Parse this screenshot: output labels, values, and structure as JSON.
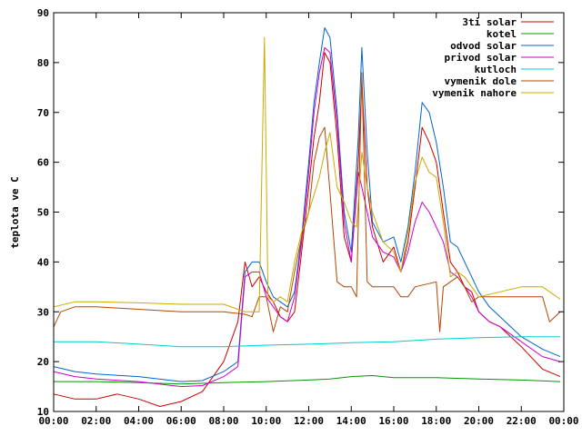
{
  "chart_data": {
    "type": "line",
    "xlabel": "",
    "ylabel": "teplota ve C",
    "ylim": [
      10,
      90
    ],
    "xlim": [
      "00:00",
      "24:00"
    ],
    "x_tick_labels": [
      "00:00",
      "02:00",
      "04:00",
      "06:00",
      "08:00",
      "10:00",
      "12:00",
      "14:00",
      "16:00",
      "18:00",
      "20:00",
      "22:00",
      "00:00"
    ],
    "y_tick_labels": [
      "10",
      "20",
      "30",
      "40",
      "50",
      "60",
      "70",
      "80",
      "90"
    ],
    "grid": false,
    "legend_position": "top-right",
    "series": [
      {
        "name": "3ti solar",
        "color": "#cc0000",
        "values": [
          [
            "00:00",
            13.5
          ],
          [
            "01:00",
            12.5
          ],
          [
            "02:00",
            12.5
          ],
          [
            "03:00",
            13.5
          ],
          [
            "04:00",
            12.5
          ],
          [
            "05:00",
            11
          ],
          [
            "06:00",
            12
          ],
          [
            "07:00",
            14
          ],
          [
            "08:00",
            20
          ],
          [
            "08:40",
            28
          ],
          [
            "09:00",
            40
          ],
          [
            "09:20",
            35
          ],
          [
            "09:40",
            37
          ],
          [
            "10:00",
            34
          ],
          [
            "10:20",
            32
          ],
          [
            "10:40",
            29
          ],
          [
            "11:00",
            28
          ],
          [
            "11:20",
            30
          ],
          [
            "11:40",
            42
          ],
          [
            "12:00",
            55
          ],
          [
            "12:15",
            65
          ],
          [
            "12:30",
            72
          ],
          [
            "12:45",
            82
          ],
          [
            "13:00",
            80
          ],
          [
            "13:20",
            65
          ],
          [
            "13:40",
            45
          ],
          [
            "14:00",
            40
          ],
          [
            "14:20",
            60
          ],
          [
            "14:30",
            76
          ],
          [
            "14:45",
            55
          ],
          [
            "15:00",
            47
          ],
          [
            "15:30",
            40
          ],
          [
            "16:00",
            43
          ],
          [
            "16:20",
            38
          ],
          [
            "16:40",
            44
          ],
          [
            "17:00",
            55
          ],
          [
            "17:20",
            67
          ],
          [
            "17:40",
            64
          ],
          [
            "18:00",
            60
          ],
          [
            "18:20",
            50
          ],
          [
            "18:40",
            40
          ],
          [
            "19:00",
            38
          ],
          [
            "19:20",
            35
          ],
          [
            "19:40",
            34
          ],
          [
            "20:00",
            30
          ],
          [
            "20:30",
            28
          ],
          [
            "21:00",
            27
          ],
          [
            "22:00",
            23
          ],
          [
            "23:00",
            18.5
          ],
          [
            "23:50",
            17
          ]
        ]
      },
      {
        "name": "kotel",
        "color": "#009900",
        "values": [
          [
            "00:00",
            16
          ],
          [
            "02:00",
            16
          ],
          [
            "04:00",
            15.8
          ],
          [
            "06:00",
            15.5
          ],
          [
            "08:00",
            15.8
          ],
          [
            "10:00",
            16
          ],
          [
            "12:00",
            16.3
          ],
          [
            "13:00",
            16.5
          ],
          [
            "14:00",
            17
          ],
          [
            "15:00",
            17.2
          ],
          [
            "16:00",
            16.8
          ],
          [
            "18:00",
            16.8
          ],
          [
            "20:00",
            16.5
          ],
          [
            "22:00",
            16.3
          ],
          [
            "23:50",
            16
          ]
        ]
      },
      {
        "name": "odvod solar",
        "color": "#0066cc",
        "values": [
          [
            "00:00",
            19
          ],
          [
            "01:00",
            18
          ],
          [
            "02:00",
            17.5
          ],
          [
            "04:00",
            17
          ],
          [
            "06:00",
            16
          ],
          [
            "07:00",
            16.2
          ],
          [
            "08:00",
            18
          ],
          [
            "08:40",
            20
          ],
          [
            "09:00",
            38
          ],
          [
            "09:20",
            40
          ],
          [
            "09:40",
            40
          ],
          [
            "10:00",
            36
          ],
          [
            "10:20",
            33
          ],
          [
            "10:40",
            32
          ],
          [
            "11:00",
            31
          ],
          [
            "11:20",
            34
          ],
          [
            "11:40",
            45
          ],
          [
            "12:00",
            60
          ],
          [
            "12:15",
            72
          ],
          [
            "12:30",
            80
          ],
          [
            "12:45",
            87
          ],
          [
            "13:00",
            85
          ],
          [
            "13:20",
            70
          ],
          [
            "13:40",
            50
          ],
          [
            "14:00",
            42
          ],
          [
            "14:20",
            65
          ],
          [
            "14:30",
            83
          ],
          [
            "14:45",
            62
          ],
          [
            "15:00",
            48
          ],
          [
            "15:30",
            44
          ],
          [
            "16:00",
            45
          ],
          [
            "16:20",
            40
          ],
          [
            "16:40",
            47
          ],
          [
            "17:00",
            58
          ],
          [
            "17:20",
            72
          ],
          [
            "17:40",
            70
          ],
          [
            "18:00",
            64
          ],
          [
            "18:20",
            55
          ],
          [
            "18:40",
            44
          ],
          [
            "19:00",
            43
          ],
          [
            "19:20",
            40
          ],
          [
            "19:40",
            37
          ],
          [
            "20:00",
            34
          ],
          [
            "20:30",
            31
          ],
          [
            "21:00",
            29
          ],
          [
            "22:00",
            25
          ],
          [
            "23:00",
            22.5
          ],
          [
            "23:50",
            21
          ]
        ]
      },
      {
        "name": "privod solar",
        "color": "#cc00cc",
        "values": [
          [
            "00:00",
            18
          ],
          [
            "01:00",
            17
          ],
          [
            "02:00",
            16.5
          ],
          [
            "04:00",
            16
          ],
          [
            "06:00",
            15
          ],
          [
            "07:00",
            15.2
          ],
          [
            "08:00",
            17
          ],
          [
            "08:40",
            19
          ],
          [
            "09:00",
            37
          ],
          [
            "09:20",
            38
          ],
          [
            "09:40",
            38
          ],
          [
            "10:00",
            33
          ],
          [
            "10:20",
            31
          ],
          [
            "10:40",
            29
          ],
          [
            "11:00",
            28
          ],
          [
            "11:20",
            33
          ],
          [
            "11:40",
            44
          ],
          [
            "12:00",
            58
          ],
          [
            "12:15",
            70
          ],
          [
            "12:30",
            78
          ],
          [
            "12:45",
            83
          ],
          [
            "13:00",
            82
          ],
          [
            "13:20",
            68
          ],
          [
            "13:40",
            48
          ],
          [
            "14:00",
            40
          ],
          [
            "14:20",
            58
          ],
          [
            "14:30",
            55
          ],
          [
            "14:45",
            50
          ],
          [
            "15:00",
            45
          ],
          [
            "15:30",
            42
          ],
          [
            "16:00",
            41
          ],
          [
            "16:20",
            38
          ],
          [
            "16:40",
            42
          ],
          [
            "17:00",
            48
          ],
          [
            "17:20",
            52
          ],
          [
            "17:40",
            50
          ],
          [
            "18:00",
            47
          ],
          [
            "18:20",
            44
          ],
          [
            "18:40",
            38
          ],
          [
            "19:00",
            37
          ],
          [
            "19:20",
            35
          ],
          [
            "19:40",
            33
          ],
          [
            "20:00",
            30
          ],
          [
            "20:30",
            28
          ],
          [
            "21:00",
            27
          ],
          [
            "22:00",
            24
          ],
          [
            "23:00",
            21
          ],
          [
            "23:50",
            20
          ]
        ]
      },
      {
        "name": "kutloch",
        "color": "#00cccc",
        "values": [
          [
            "00:00",
            24
          ],
          [
            "02:00",
            24
          ],
          [
            "04:00",
            23.5
          ],
          [
            "06:00",
            23
          ],
          [
            "08:00",
            23
          ],
          [
            "10:00",
            23.3
          ],
          [
            "12:00",
            23.5
          ],
          [
            "14:00",
            23.8
          ],
          [
            "16:00",
            24
          ],
          [
            "18:00",
            24.5
          ],
          [
            "20:00",
            24.8
          ],
          [
            "22:00",
            25
          ],
          [
            "23:50",
            25
          ]
        ]
      },
      {
        "name": "vymenik dole",
        "color": "#b34700",
        "values": [
          [
            "00:00",
            27
          ],
          [
            "00:20",
            30
          ],
          [
            "01:00",
            31
          ],
          [
            "02:00",
            31
          ],
          [
            "04:00",
            30.5
          ],
          [
            "06:00",
            30
          ],
          [
            "08:00",
            30
          ],
          [
            "09:00",
            29.5
          ],
          [
            "09:20",
            29
          ],
          [
            "09:40",
            33
          ],
          [
            "10:00",
            33
          ],
          [
            "10:20",
            26
          ],
          [
            "10:40",
            31
          ],
          [
            "11:00",
            30
          ],
          [
            "11:20",
            38
          ],
          [
            "11:40",
            45
          ],
          [
            "12:00",
            50
          ],
          [
            "12:15",
            60
          ],
          [
            "12:30",
            65
          ],
          [
            "12:45",
            67
          ],
          [
            "13:00",
            54
          ],
          [
            "13:20",
            36
          ],
          [
            "13:40",
            35
          ],
          [
            "14:00",
            35
          ],
          [
            "14:15",
            33
          ],
          [
            "14:30",
            78
          ],
          [
            "14:45",
            36
          ],
          [
            "15:00",
            35
          ],
          [
            "16:00",
            35
          ],
          [
            "16:20",
            33
          ],
          [
            "16:40",
            33
          ],
          [
            "17:00",
            35
          ],
          [
            "18:00",
            36
          ],
          [
            "18:10",
            26
          ],
          [
            "18:20",
            35
          ],
          [
            "19:00",
            37
          ],
          [
            "19:20",
            35
          ],
          [
            "19:40",
            32
          ],
          [
            "20:00",
            33
          ],
          [
            "21:00",
            33
          ],
          [
            "22:00",
            33
          ],
          [
            "23:00",
            33
          ],
          [
            "23:20",
            28
          ],
          [
            "23:50",
            30
          ]
        ]
      },
      {
        "name": "vymenik nahore",
        "color": "#ccaa00",
        "values": [
          [
            "00:00",
            31
          ],
          [
            "01:00",
            32
          ],
          [
            "02:00",
            32
          ],
          [
            "04:00",
            31.8
          ],
          [
            "06:00",
            31.5
          ],
          [
            "08:00",
            31.5
          ],
          [
            "09:00",
            30
          ],
          [
            "09:40",
            30
          ],
          [
            "09:55",
            85
          ],
          [
            "10:05",
            33
          ],
          [
            "10:20",
            32
          ],
          [
            "10:40",
            33
          ],
          [
            "11:00",
            32
          ],
          [
            "11:20",
            40
          ],
          [
            "11:40",
            46
          ],
          [
            "12:00",
            50
          ],
          [
            "12:30",
            57
          ],
          [
            "12:45",
            62
          ],
          [
            "13:00",
            66
          ],
          [
            "13:20",
            55
          ],
          [
            "13:40",
            52
          ],
          [
            "14:00",
            48
          ],
          [
            "14:15",
            47
          ],
          [
            "14:30",
            62
          ],
          [
            "14:45",
            55
          ],
          [
            "15:00",
            50
          ],
          [
            "15:30",
            44
          ],
          [
            "16:00",
            42
          ],
          [
            "16:20",
            38
          ],
          [
            "16:40",
            46
          ],
          [
            "17:00",
            56
          ],
          [
            "17:20",
            61
          ],
          [
            "17:40",
            58
          ],
          [
            "18:00",
            57
          ],
          [
            "18:20",
            48
          ],
          [
            "18:40",
            37
          ],
          [
            "19:00",
            38
          ],
          [
            "19:20",
            37
          ],
          [
            "19:40",
            35
          ],
          [
            "20:00",
            33
          ],
          [
            "21:00",
            34
          ],
          [
            "22:00",
            35
          ],
          [
            "23:00",
            35
          ],
          [
            "23:50",
            32.5
          ]
        ]
      }
    ]
  }
}
